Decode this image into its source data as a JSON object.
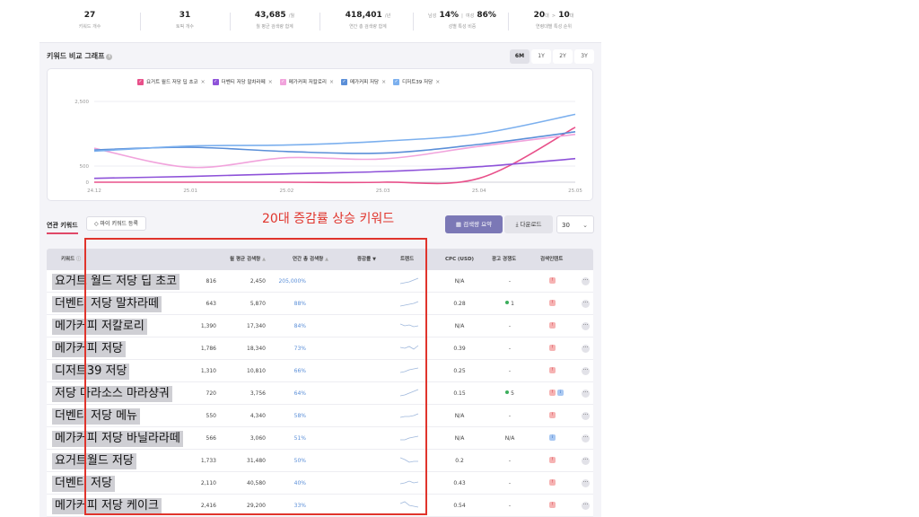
{
  "stats": [
    {
      "value": "27",
      "unit": "",
      "label": "키워드 개수"
    },
    {
      "value": "31",
      "unit": "",
      "label": "토픽 개수"
    },
    {
      "value": "43,685",
      "unit": "/월",
      "label": "월 평균 검색량 합계"
    },
    {
      "value": "418,401",
      "unit": "/년",
      "label": "연간 총 검색량 합계"
    },
    {
      "value": "14% | 86%",
      "unit": "",
      "pre": "남성",
      "mid": "여성",
      "v1": "14%",
      "v2": "86%",
      "label": "성별 특성 비중"
    },
    {
      "value": "20대 > 10대",
      "unit": "",
      "v1": "20",
      "v2": "10",
      "label": "연령대별 특성 순위"
    }
  ],
  "chart_section": {
    "title": "키워드 비교 그래프",
    "ranges": [
      "6M",
      "1Y",
      "2Y",
      "3Y"
    ],
    "active_range": "6M"
  },
  "chart_data": {
    "type": "line",
    "x": [
      "24.12",
      "25.01",
      "25.02",
      "25.03",
      "25.04",
      "25.05"
    ],
    "y_ticks": [
      "2,500",
      "500",
      "0"
    ],
    "ylim": [
      0,
      2500
    ],
    "grid": true,
    "legend_position": "top-center",
    "series": [
      {
        "name": "요거트 월드 저당 딥 초코",
        "color": "#e8508a",
        "values": [
          0,
          0,
          0,
          0,
          120,
          1700
        ]
      },
      {
        "name": "더벤티 저당 말차라떼",
        "color": "#8e52d9",
        "values": [
          120,
          180,
          260,
          330,
          480,
          730
        ]
      },
      {
        "name": "메가커피 저칼로리",
        "color": "#f1a3dc",
        "values": [
          1050,
          460,
          760,
          720,
          1110,
          1480
        ]
      },
      {
        "name": "메가커피 저당",
        "color": "#5b8fd8",
        "values": [
          1000,
          1080,
          950,
          900,
          1170,
          1560
        ]
      },
      {
        "name": "디저트39 저당",
        "color": "#7cb0ee",
        "values": [
          960,
          1120,
          1150,
          1270,
          1500,
          2100
        ]
      }
    ]
  },
  "tabs": {
    "related": "연관 키워드",
    "my_keyword": "◇ 마이 키워드 등록",
    "summary": "검색량 요약",
    "download": "다운로드",
    "page_size": "30"
  },
  "table": {
    "headers": {
      "keyword": "키워드",
      "avg": "월 평균 검색량",
      "total": "연간 총 검색량",
      "rate": "증감률",
      "trend": "트렌드",
      "cpc": "CPC (USD)",
      "comp": "광고 경쟁도",
      "intent": "검색인텐트"
    },
    "rows": [
      {
        "keyword": "요거트 월드 저당 딥 초코",
        "avg": "816",
        "total": "2,450",
        "rate": "205,000%",
        "cpc": "N/A",
        "comp": "-",
        "comp_dot": false,
        "badges": [
          "red"
        ]
      },
      {
        "keyword": "더벤티 저당 말차라떼",
        "avg": "643",
        "total": "5,870",
        "rate": "88%",
        "cpc": "0.28",
        "comp": "1",
        "comp_dot": true,
        "badges": [
          "red"
        ]
      },
      {
        "keyword": "메가커피 저칼로리",
        "avg": "1,390",
        "total": "17,340",
        "rate": "84%",
        "cpc": "N/A",
        "comp": "-",
        "comp_dot": false,
        "badges": [
          "red"
        ]
      },
      {
        "keyword": "메가커피 저당",
        "avg": "1,786",
        "total": "18,340",
        "rate": "73%",
        "cpc": "0.39",
        "comp": "-",
        "comp_dot": false,
        "badges": [
          "red"
        ]
      },
      {
        "keyword": "디저트39 저당",
        "avg": "1,310",
        "total": "10,810",
        "rate": "66%",
        "cpc": "0.25",
        "comp": "-",
        "comp_dot": false,
        "badges": [
          "red"
        ]
      },
      {
        "keyword": "저당 마라소스 마라샹궈",
        "avg": "720",
        "total": "3,756",
        "rate": "64%",
        "cpc": "0.15",
        "comp": "5",
        "comp_dot": true,
        "badges": [
          "red",
          "blue"
        ]
      },
      {
        "keyword": "더벤티 저당 메뉴",
        "avg": "550",
        "total": "4,340",
        "rate": "58%",
        "cpc": "N/A",
        "comp": "-",
        "comp_dot": false,
        "badges": [
          "red"
        ]
      },
      {
        "keyword": "메가커피 저당 바닐라라떼",
        "avg": "566",
        "total": "3,060",
        "rate": "51%",
        "cpc": "N/A",
        "comp": "N/A",
        "comp_dot": false,
        "badges": [
          "blue"
        ]
      },
      {
        "keyword": "요거트월드 저당",
        "avg": "1,733",
        "total": "31,480",
        "rate": "50%",
        "cpc": "0.2",
        "comp": "-",
        "comp_dot": false,
        "badges": [
          "red"
        ]
      },
      {
        "keyword": "더벤티 저당",
        "avg": "2,110",
        "total": "40,580",
        "rate": "40%",
        "cpc": "0.43",
        "comp": "-",
        "comp_dot": false,
        "badges": [
          "red"
        ]
      },
      {
        "keyword": "메가커피 저당 케이크",
        "avg": "2,416",
        "total": "29,200",
        "rate": "33%",
        "cpc": "0.54",
        "comp": "-",
        "comp_dot": false,
        "badges": [
          "red"
        ]
      }
    ]
  },
  "annotation": {
    "title": "20대 증감률 상승 키워드",
    "color": "#e0342c"
  }
}
